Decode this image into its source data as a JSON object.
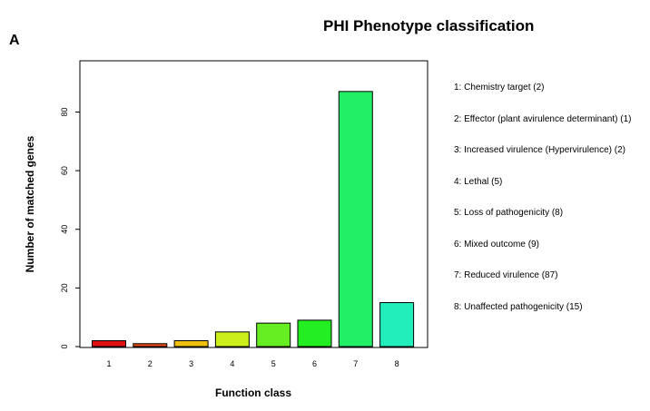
{
  "panel_label": "A",
  "chart_data": {
    "type": "bar",
    "title": "PHI Phenotype classification",
    "xlabel": "Function class",
    "ylabel": "Number of matched genes",
    "categories": [
      "1",
      "2",
      "3",
      "4",
      "5",
      "6",
      "7",
      "8"
    ],
    "values": [
      2,
      1,
      2,
      5,
      8,
      9,
      87,
      15
    ],
    "colors": [
      "#e01010",
      "#e84a14",
      "#f0c010",
      "#ccee1a",
      "#66ee22",
      "#22ee22",
      "#22ee66",
      "#22eebb"
    ],
    "ylim": [
      0,
      95
    ],
    "yticks": [
      0,
      20,
      40,
      60,
      80
    ],
    "grid": false,
    "legend_position": "right",
    "legend": [
      "1: Chemistry target   (2)",
      "2: Effector (plant avirulence determinant)   (1)",
      "3: Increased virulence (Hypervirulence)   (2)",
      "4: Lethal   (5)",
      "5: Loss of pathogenicity   (8)",
      "6: Mixed outcome   (9)",
      "7: Reduced virulence   (87)",
      "8: Unaffected pathogenicity   (15)"
    ]
  }
}
